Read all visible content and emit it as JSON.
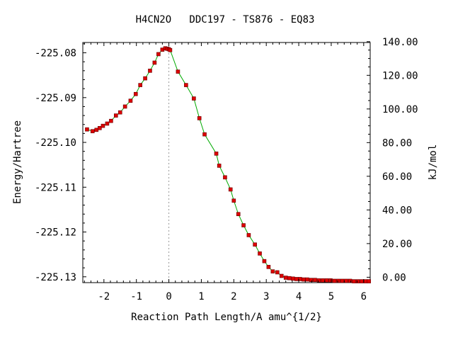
{
  "chart_data": {
    "type": "line",
    "title": "H4CN2O   DDC197 - TS876 - EQ83",
    "xlabel": "Reaction Path Length/A amu^{1/2}",
    "ylabel": "Energy/Hartree",
    "y2label": "kJ/mol",
    "xlim": [
      -2.65,
      6.2
    ],
    "ylim": [
      -225.1313,
      -225.0777
    ],
    "y2lim": [
      -3.2,
      139.5
    ],
    "x_ticks": [
      -2,
      -1,
      0,
      1,
      2,
      3,
      4,
      5,
      6
    ],
    "y_ticks": [
      -225.08,
      -225.09,
      -225.1,
      -225.11,
      -225.12,
      -225.13
    ],
    "y_tick_labels": [
      "-225.08",
      "-225.09",
      "-225.10",
      "-225.11",
      "-225.12",
      "-225.13"
    ],
    "y2_ticks": [
      0,
      20,
      40,
      60,
      80,
      100,
      120,
      140
    ],
    "y2_tick_labels": [
      "0.00",
      "20.00",
      "40.00",
      "60.00",
      "80.00",
      "100.00",
      "120.00",
      "140.00"
    ],
    "ts_marker_x": 0.0,
    "colors": {
      "curve": "#00aa00",
      "points": "#dd0000",
      "point_edge": "#660000",
      "ts_line": "#999999"
    },
    "series": [
      {
        "x": [
          -2.52,
          -2.35,
          -2.23,
          -2.13,
          -2.03,
          -1.9,
          -1.78,
          -1.63,
          -1.5,
          -1.35,
          -1.18,
          -1.02,
          -0.88,
          -0.73,
          -0.58,
          -0.44,
          -0.32,
          -0.2,
          -0.11,
          -0.05,
          0.0,
          0.04,
          0.28,
          0.53,
          0.77,
          0.94,
          1.1,
          1.46,
          1.55,
          1.73,
          1.9,
          2.0,
          2.14,
          2.3,
          2.46,
          2.65,
          2.8,
          2.94,
          3.07,
          3.2,
          3.34,
          3.47,
          3.6,
          3.71,
          3.82,
          3.93,
          4.04,
          4.15,
          4.26,
          4.38,
          4.5,
          4.62,
          4.74,
          4.86,
          4.98,
          5.1,
          5.22,
          5.34,
          5.46,
          5.58,
          5.7,
          5.82,
          5.94,
          6.06,
          6.16
        ],
        "y": [
          -225.0971,
          -225.0975,
          -225.0972,
          -225.0968,
          -225.0963,
          -225.0958,
          -225.0952,
          -225.094,
          -225.0933,
          -225.092,
          -225.0907,
          -225.0892,
          -225.0872,
          -225.0857,
          -225.084,
          -225.0822,
          -225.0803,
          -225.0793,
          -225.079,
          -225.0791,
          -225.0792,
          -225.0794,
          -225.0842,
          -225.0872,
          -225.0902,
          -225.0946,
          -225.0982,
          -225.1025,
          -225.1052,
          -225.1078,
          -225.1105,
          -225.113,
          -225.116,
          -225.1185,
          -225.1207,
          -225.1228,
          -225.1248,
          -225.1265,
          -225.1278,
          -225.1288,
          -225.129,
          -225.1298,
          -225.1302,
          -225.1303,
          -225.1304,
          -225.1305,
          -225.1305,
          -225.1306,
          -225.1306,
          -225.1307,
          -225.1307,
          -225.1308,
          -225.1308,
          -225.1308,
          -225.1308,
          -225.1309,
          -225.1309,
          -225.1309,
          -225.1309,
          -225.1309,
          -225.131,
          -225.131,
          -225.131,
          -225.131,
          -225.131
        ]
      }
    ]
  }
}
